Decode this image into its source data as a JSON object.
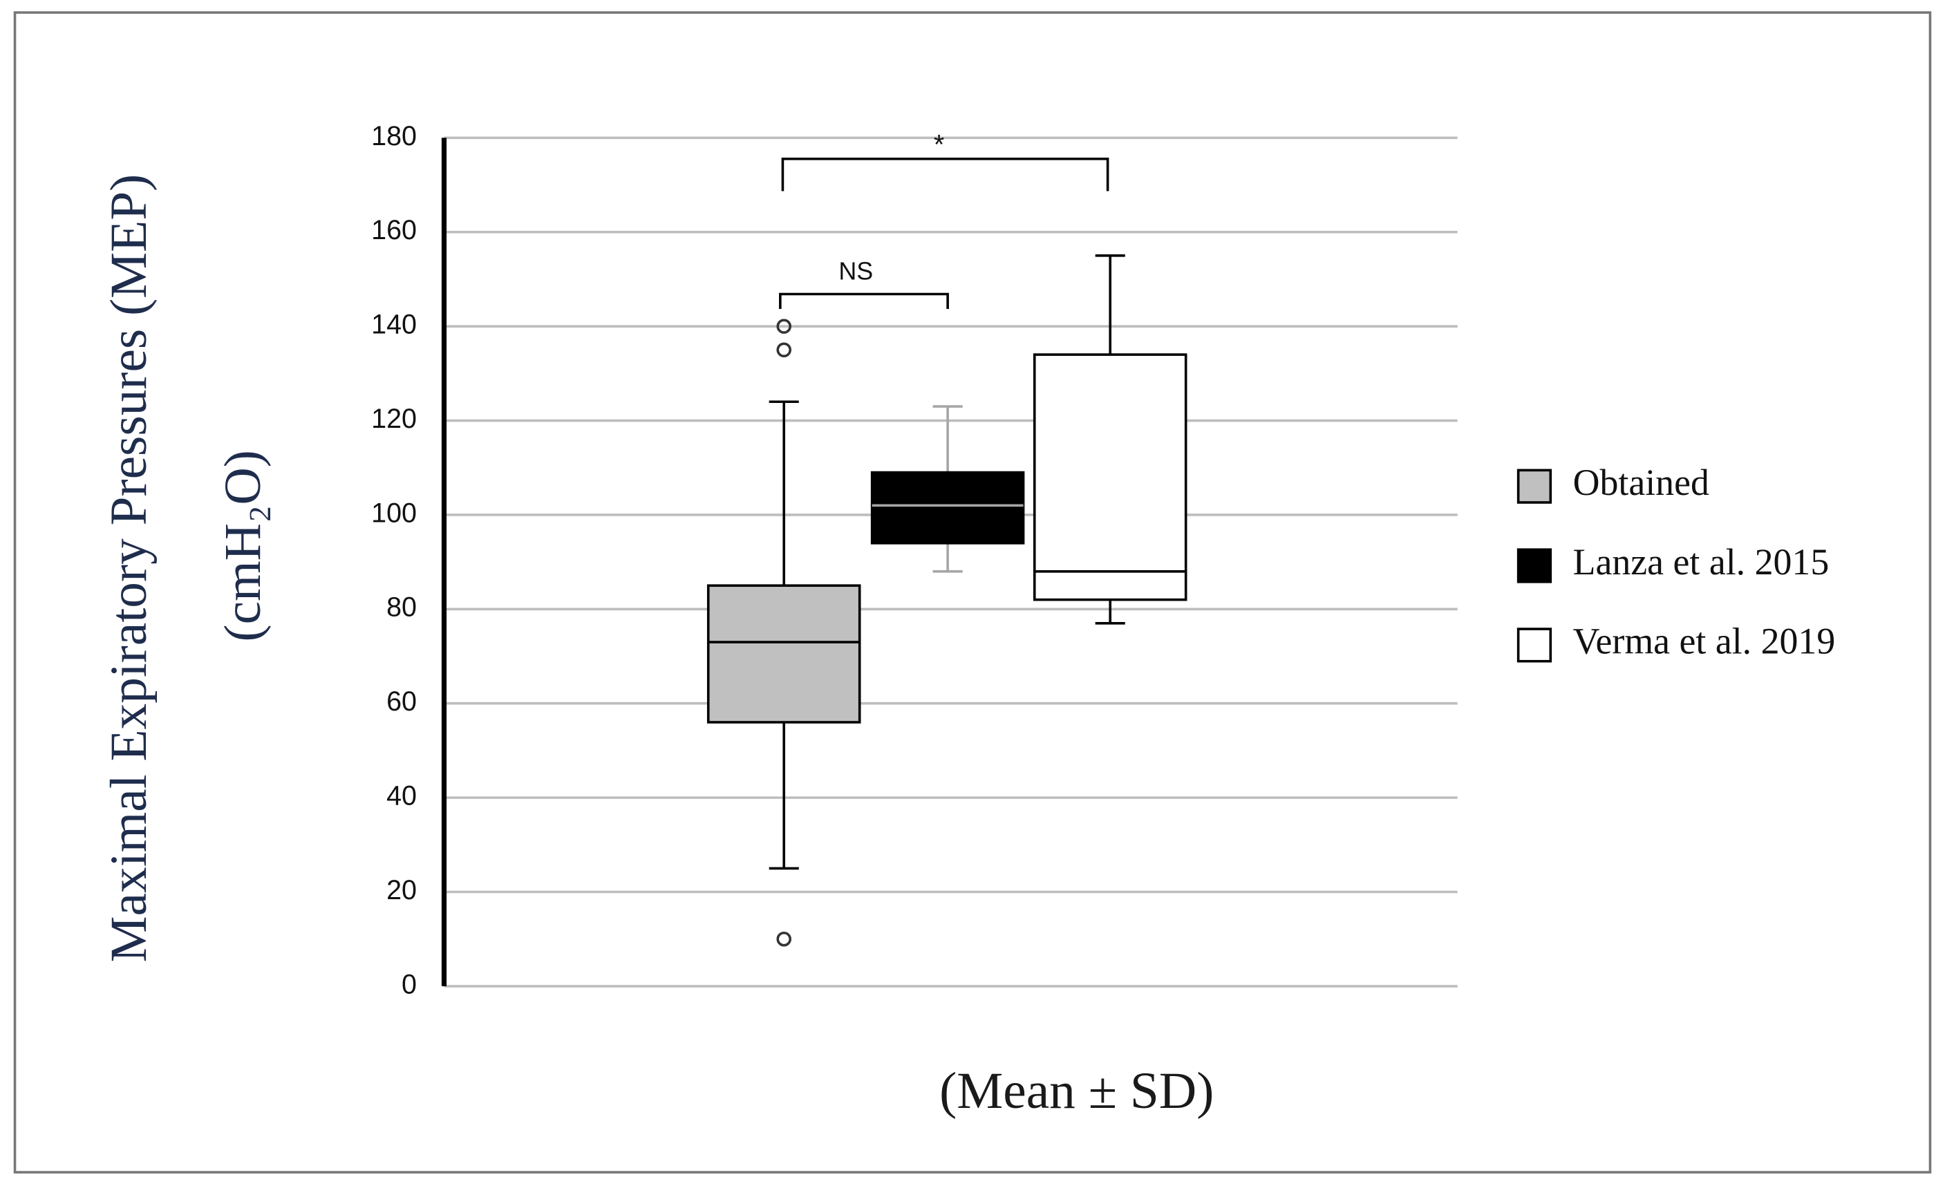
{
  "chart_data": {
    "type": "box",
    "ylabel": [
      "Maximal Expiratory Pressures (MEP)",
      "(cmH₂O)"
    ],
    "xlabel": "(Mean ± SD)",
    "ylim": [
      0,
      180
    ],
    "yticks": [
      0,
      20,
      40,
      60,
      80,
      100,
      120,
      140,
      160,
      180
    ],
    "grid": true,
    "legend": "right",
    "series": [
      {
        "name": "Obtained",
        "color": "#c0c0c0",
        "whisker_color": "#000000",
        "whisker_low": 25,
        "q1": 56,
        "median": 73,
        "q3": 85,
        "whisker_high": 124,
        "outliers": [
          135,
          140,
          10
        ]
      },
      {
        "name": "Lanza et al. 2015",
        "color": "#000000",
        "whisker_color": "#a6a6a6",
        "whisker_low": 88,
        "q1": 94,
        "median": 102,
        "q3": 109,
        "whisker_high": 123,
        "outliers": []
      },
      {
        "name": "Verma et al. 2019",
        "color": "#ffffff",
        "whisker_color": "#000000",
        "whisker_low": 77,
        "q1": 82,
        "median": 88,
        "q3": 134,
        "whisker_high": 155,
        "outliers": []
      }
    ],
    "annotations": [
      "NS",
      "*"
    ]
  }
}
